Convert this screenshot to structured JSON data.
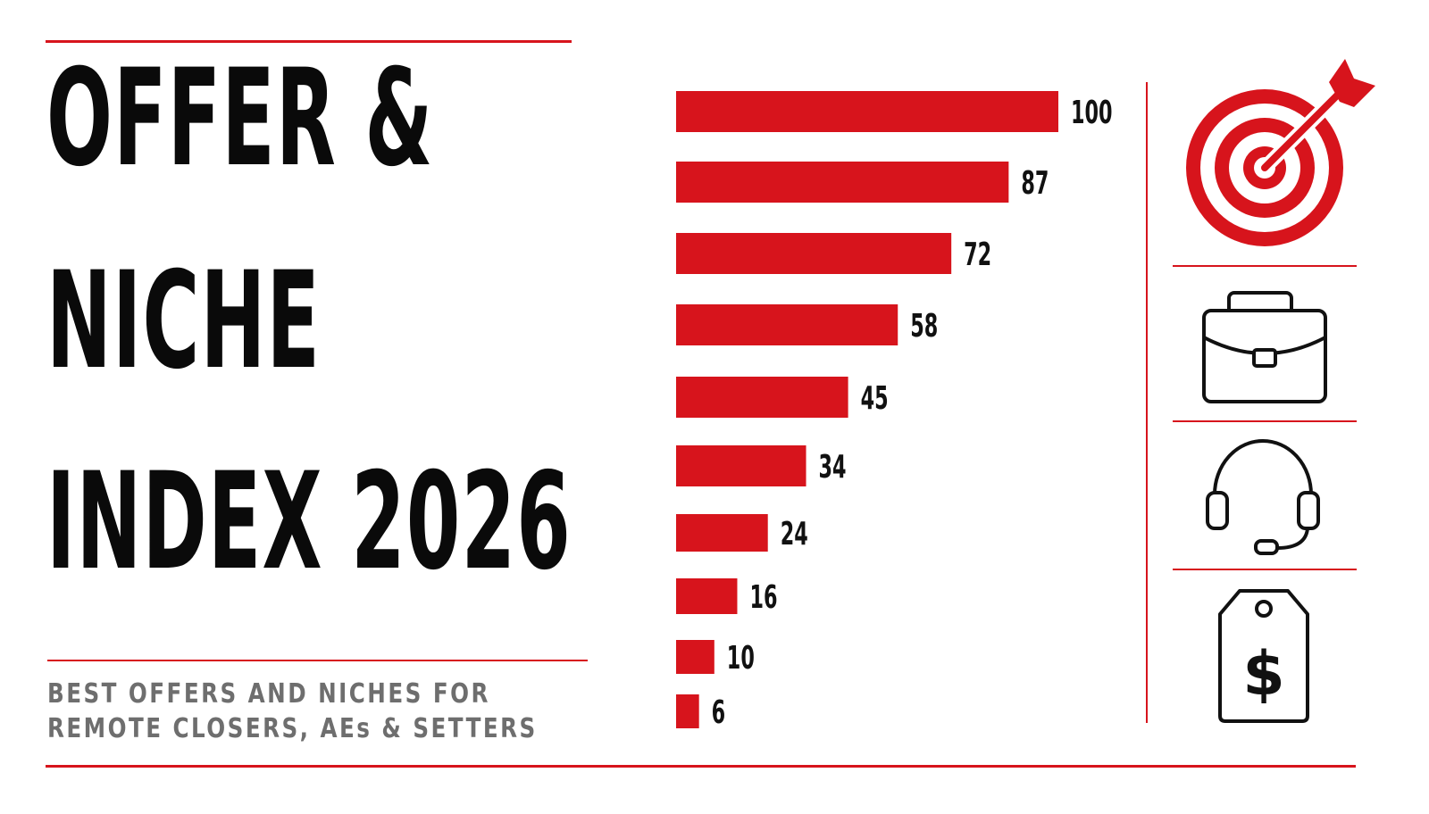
{
  "title": {
    "line1": "OFFER &",
    "line2": "NICHE",
    "line3": "INDEX 2026"
  },
  "subtitle": {
    "line1": "BEST OFFERS AND NICHES FOR",
    "line2": "REMOTE CLOSERS, AEs & SETTERS"
  },
  "colors": {
    "accent": "#d7141c",
    "text": "#0a0a0a",
    "subtitle": "#6e6e6e"
  },
  "icons": [
    "target-icon",
    "briefcase-icon",
    "headset-icon",
    "price-tag-icon"
  ],
  "chart_data": {
    "type": "bar",
    "orientation": "horizontal",
    "values": [
      100,
      87,
      72,
      58,
      45,
      34,
      24,
      16,
      10,
      6
    ],
    "data_labels": [
      "100",
      "87",
      "72",
      "58",
      "45",
      "34",
      "24",
      "16",
      "10",
      "6"
    ],
    "xlim": [
      0,
      100
    ],
    "grid": false,
    "legend": "none",
    "bar_color": "#d7141c"
  }
}
